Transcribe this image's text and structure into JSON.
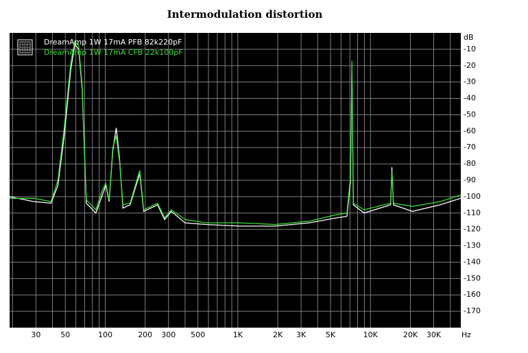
{
  "chart_data": {
    "type": "line",
    "title": "Intermodulation distortion",
    "x_label": "Hz",
    "y_label": "dB",
    "x_scale": "log",
    "xlim": [
      19,
      48000
    ],
    "ylim": [
      -180,
      0
    ],
    "xticks": [
      30,
      50,
      100,
      200,
      300,
      500,
      {
        "value": 1000,
        "label": "1K"
      },
      {
        "value": 2000,
        "label": "2K"
      },
      {
        "value": 3000,
        "label": "3K"
      },
      {
        "value": 5000,
        "label": "5K"
      },
      {
        "value": 10000,
        "label": "10K"
      },
      {
        "value": 20000,
        "label": "20K"
      },
      {
        "value": 30000,
        "label": "30K"
      }
    ],
    "x_minor_grid": [
      20,
      40,
      60,
      70,
      80,
      90,
      400,
      600,
      700,
      800,
      900,
      4000,
      6000,
      7000,
      8000,
      9000,
      40000
    ],
    "yticks": [
      -10,
      -20,
      -30,
      -40,
      -50,
      -60,
      -70,
      -80,
      -90,
      -100,
      -110,
      -120,
      -130,
      -140,
      -150,
      -160,
      -170
    ],
    "grid": true,
    "grid_color": "#7f7f7f",
    "background": "#000000",
    "legend": "upper left",
    "x": [
      19,
      29,
      39,
      44,
      49,
      55,
      59,
      63,
      67,
      72,
      85,
      95,
      101,
      107,
      114,
      121,
      128,
      136,
      154,
      182,
      195,
      248,
      280,
      315,
      400,
      574,
      1040,
      1900,
      3450,
      5550,
      6640,
      7070,
      7250,
      7430,
      8960,
      14200,
      14500,
      14900,
      20700,
      33500,
      48000
    ],
    "series": [
      {
        "name": "DreamAmp 1W 17mA PFB 82k220pF",
        "color": "#ffffff",
        "values": [
          -100,
          -103,
          -104,
          -93,
          -63,
          -22,
          -7,
          -10,
          -34,
          -104,
          -110,
          -99,
          -93,
          -103,
          -72,
          -58,
          -76,
          -107,
          -105,
          -86,
          -109,
          -105,
          -114,
          -109,
          -116,
          -117,
          -118,
          -118,
          -116,
          -113,
          -112,
          -91,
          -20,
          -105,
          -110,
          -105,
          -82,
          -105,
          -109,
          -105,
          -101
        ]
      },
      {
        "name": "DreamAmp 1W 17mA CFB 22k100pF",
        "color": "#33e033",
        "values": [
          -101,
          -101,
          -103,
          -90,
          -58,
          -18,
          -5,
          -8,
          -32,
          -102,
          -108,
          -96,
          -92,
          -102,
          -70,
          -63,
          -78,
          -105,
          -104,
          -84,
          -108,
          -104,
          -113,
          -108,
          -114,
          -116,
          -116,
          -117,
          -115,
          -111,
          -110,
          -88,
          -17,
          -104,
          -108,
          -104,
          -84,
          -104,
          -106,
          -103,
          -99
        ]
      }
    ]
  }
}
